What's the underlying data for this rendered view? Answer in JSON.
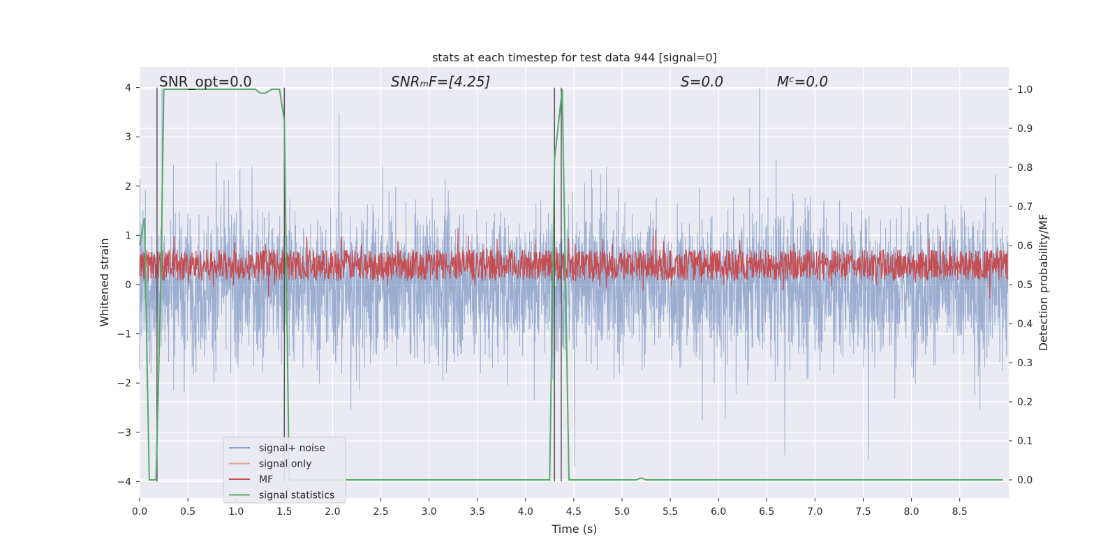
{
  "chart_data": {
    "type": "line",
    "title": "stats at each timestep for test data 944 [signal=0]",
    "xlabel": "Time (s)",
    "ylabel_left": "Whitened strain",
    "ylabel_right": "Detection probability/MF",
    "xlim": [
      0.0,
      9.0
    ],
    "ylim_left": [
      -4.3,
      4.4
    ],
    "ylim_right": [
      -0.05,
      1.05
    ],
    "x_ticks": [
      "0.0",
      "0.5",
      "1.0",
      "1.5",
      "2.0",
      "2.5",
      "3.0",
      "3.5",
      "4.0",
      "4.5",
      "5.0",
      "5.5",
      "6.0",
      "6.5",
      "7.0",
      "7.5",
      "8.0",
      "8.5"
    ],
    "y_left_ticks": [
      4,
      3,
      2,
      1,
      0,
      -1,
      -2,
      -3,
      -4
    ],
    "y_left_tick_labels": [
      "4",
      "3",
      "2",
      "1",
      "0",
      "−1",
      "−2",
      "−3",
      "−4"
    ],
    "y_right_ticks": [
      1.0,
      0.9,
      0.8,
      0.7,
      0.6,
      0.5,
      0.4,
      0.3,
      0.2,
      0.1,
      0.0
    ],
    "y_right_tick_labels": [
      "1.0",
      "0.9",
      "0.8",
      "0.7",
      "0.6",
      "0.5",
      "0.4",
      "0.3",
      "0.2",
      "0.1",
      "0.0"
    ],
    "grid": true,
    "legend_position": "lower-left",
    "annotations": {
      "snr_opt": "SNR_opt=0.0",
      "snr_mf": "SNRₘF=[4.25]",
      "s_value": "S=0.0",
      "mc_value": "Mᶜ=0.0"
    },
    "colors": {
      "signal_noise": "#4c72b0",
      "signal_only": "#dd8452",
      "mf": "#c44e52",
      "statistics": "#55a868",
      "vlines": "#555555",
      "background": "#eaeaf2"
    },
    "series": [
      {
        "name": "signal+ noise",
        "axis": "left",
        "description_level": "noise band approx ±1.5 with peaks to ±4"
      },
      {
        "name": "signal only",
        "axis": "left",
        "values": []
      },
      {
        "name": "MF",
        "axis": "right",
        "description_level": "band approx 0.5–0.6, peaks to 0.65"
      },
      {
        "name": "signal statistics",
        "axis": "right",
        "x": [
          0.0,
          0.05,
          0.1,
          0.17,
          0.22,
          0.25,
          0.3,
          0.5,
          0.8,
          1.0,
          1.2,
          1.25,
          1.3,
          1.37,
          1.4,
          1.45,
          1.5,
          1.55,
          1.6,
          2.0,
          3.0,
          4.0,
          4.25,
          4.3,
          4.38,
          4.45,
          4.5,
          4.8,
          4.9,
          5.15,
          5.2,
          5.25,
          5.5,
          6.0,
          7.0,
          8.0,
          8.95
        ],
        "values": [
          0.6,
          0.67,
          0.0,
          0.0,
          0.5,
          1.0,
          1.0,
          1.0,
          1.0,
          1.0,
          1.0,
          0.99,
          0.99,
          1.0,
          1.0,
          1.0,
          0.92,
          0.0,
          0.0,
          0.0,
          0.0,
          0.0,
          0.0,
          0.82,
          1.0,
          0.0,
          0.0,
          0.0,
          0.0,
          0.0,
          0.005,
          0.0,
          0.0,
          0.0,
          0.0,
          0.0,
          0.0
        ]
      }
    ],
    "vertical_lines_x": [
      0.18,
      1.5,
      4.3,
      4.37
    ]
  }
}
